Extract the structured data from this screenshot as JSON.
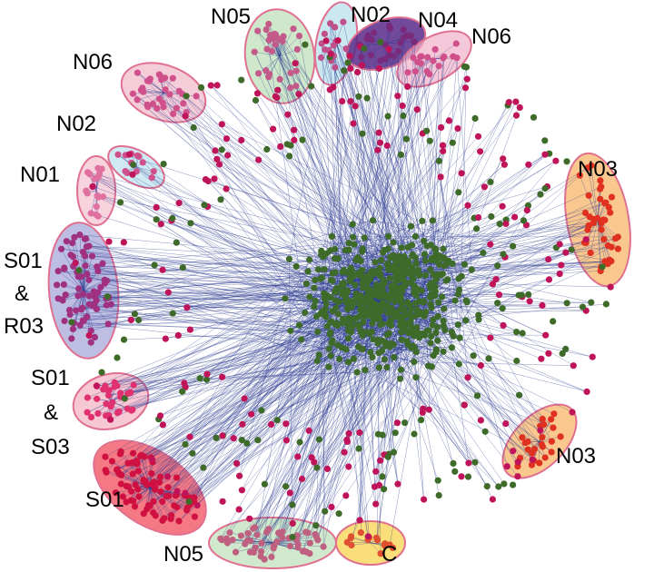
{
  "colors": {
    "edge": "#2b3a8f",
    "node_green": "#3f6b2a",
    "node_magenta": "#c0145a",
    "node_pink": "#d0508c",
    "node_purple": "#5a2a85",
    "node_red": "#e02040",
    "node_orange": "#e05030"
  },
  "clusters": [
    {
      "id": "N05_top",
      "label": "N05",
      "fill": "#a8d5a0",
      "node_color": "#c45a8a"
    },
    {
      "id": "N02_top",
      "label": "N02",
      "fill": "#a8d8e8",
      "node_color": "#c0508c"
    },
    {
      "id": "N04",
      "label": "N04",
      "fill": "#5a2a8a",
      "node_color": "#7a2a7a"
    },
    {
      "id": "N06_right",
      "label": "N06",
      "fill": "#f0b0c8",
      "node_color": "#d0508c"
    },
    {
      "id": "N06_left",
      "label": "N06",
      "fill": "#f0b8c8",
      "node_color": "#d0508c"
    },
    {
      "id": "N02_left",
      "label": "N02",
      "fill": "#a8d8e8",
      "node_color": "#d0508c"
    },
    {
      "id": "N01",
      "label": "N01",
      "fill": "#f4c0d0",
      "node_color": "#e070a0"
    },
    {
      "id": "S01_R03",
      "label_lines": [
        "S01",
        "&",
        "R03"
      ],
      "fill": "#8888cc",
      "node_color": "#a03080"
    },
    {
      "id": "S01_S03",
      "label_lines": [
        "S01",
        "&",
        "S03"
      ],
      "fill": "#f4b0c0",
      "node_color": "#e03070"
    },
    {
      "id": "S01",
      "label": "S01",
      "fill": "#f04050",
      "node_color": "#d01040"
    },
    {
      "id": "N05_bottom",
      "label": "N05",
      "fill": "#b0d8a8",
      "node_color": "#c06080"
    },
    {
      "id": "C",
      "label": "C",
      "fill": "#f8d040",
      "node_color": "#e05030"
    },
    {
      "id": "N03_right",
      "label": "N03",
      "fill": "#f8b060",
      "node_color": "#e03020"
    },
    {
      "id": "N03_bottom",
      "label": "N03",
      "fill": "#f8b060",
      "node_color": "#e03020"
    }
  ]
}
